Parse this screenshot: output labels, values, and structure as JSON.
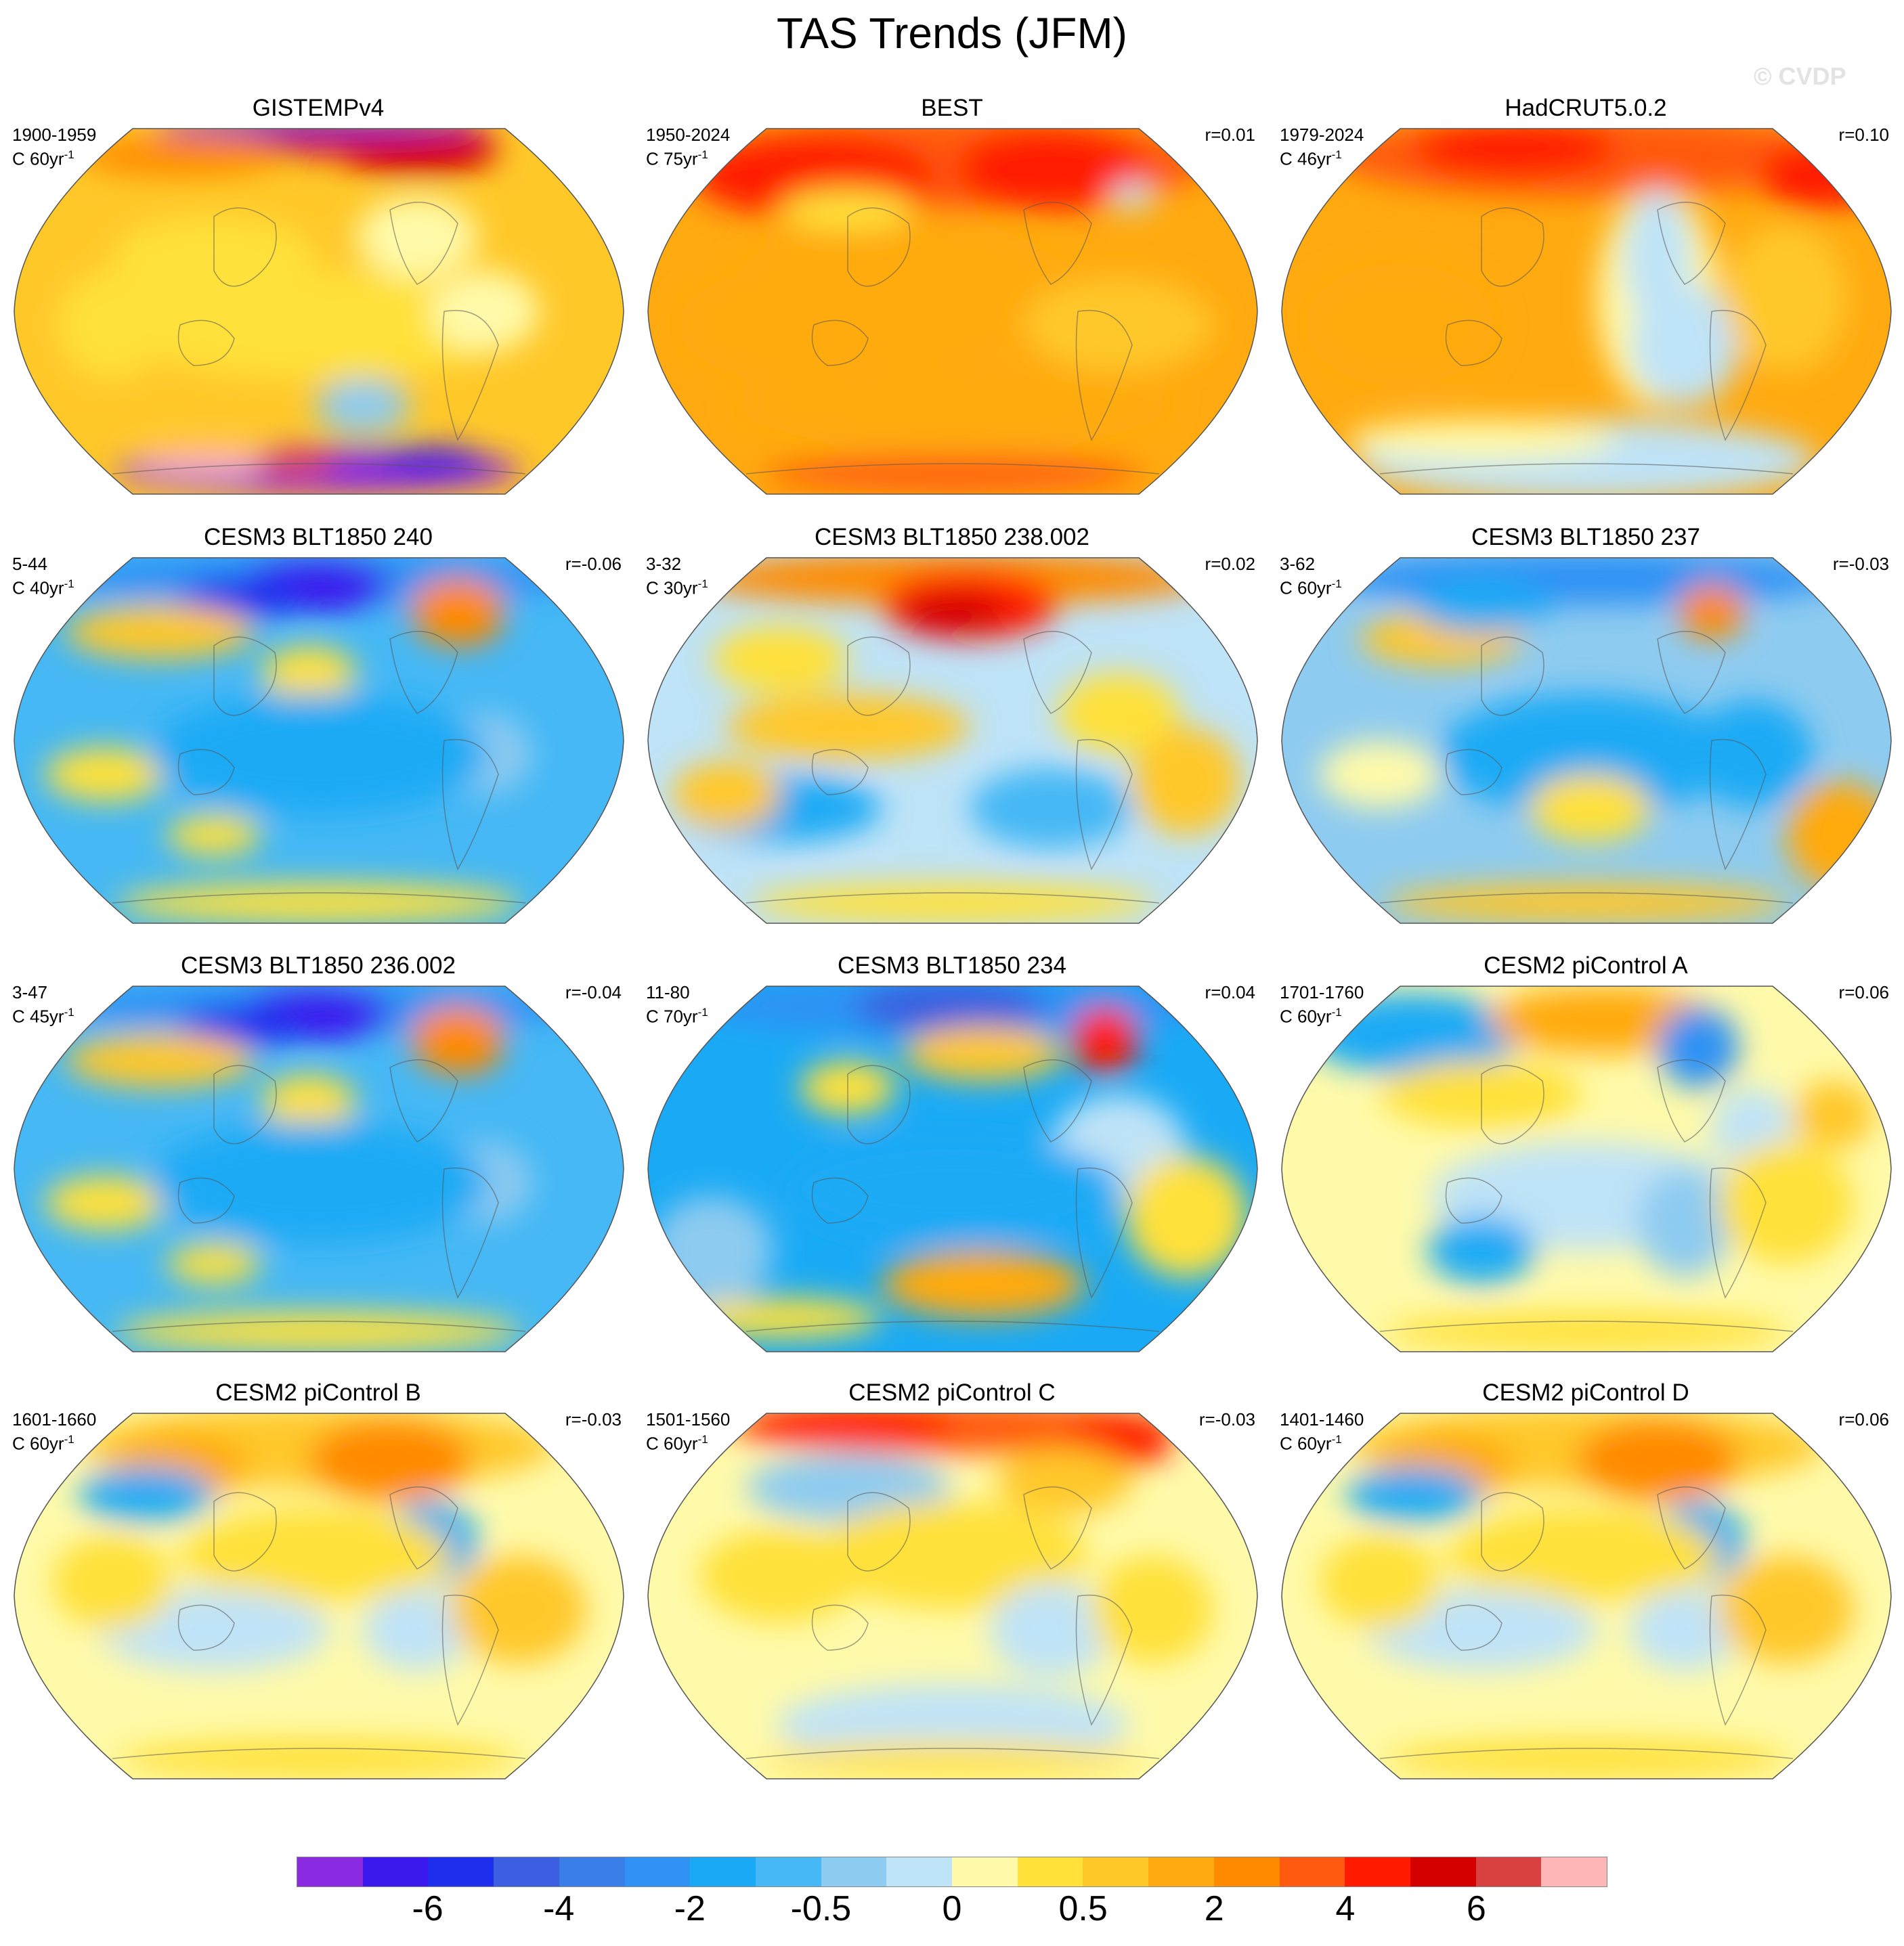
{
  "figure": {
    "title": "TAS Trends (JFM)",
    "watermark": "© CVDP"
  },
  "palette": {
    "ocean_outline": "#555555",
    "colors": [
      "#8a2be2",
      "#3b18ee",
      "#1f2fee",
      "#3b5fe0",
      "#3a7fe8",
      "#2f92f4",
      "#1aaaf5",
      "#45b8f5",
      "#8ecbf0",
      "#bfe3f7",
      "#fffaaa",
      "#ffe13a",
      "#ffc829",
      "#ffaa10",
      "#ff8a00",
      "#ff5a10",
      "#ff1a00",
      "#d40000",
      "#d94040",
      "#ffb6b6"
    ],
    "labels": [
      "-6",
      "-4",
      "-2",
      "-0.5",
      "0",
      "0.5",
      "2",
      "4",
      "6"
    ]
  },
  "panels": [
    {
      "title": "GISTEMPv4",
      "period": "1900-1959",
      "units": "C 60yr",
      "units_exp": "-1",
      "r": "",
      "style": "gistemp"
    },
    {
      "title": "BEST",
      "period": "1950-2024",
      "units": "C 75yr",
      "units_exp": "-1",
      "r": "r=0.01",
      "style": "best"
    },
    {
      "title": "HadCRUT5.0.2",
      "period": "1979-2024",
      "units": "C 46yr",
      "units_exp": "-1",
      "r": "r=0.10",
      "style": "hadcrut"
    },
    {
      "title": "CESM3 BLT1850 240",
      "period": "5-44",
      "units": "C 40yr",
      "units_exp": "-1",
      "r": "r=-0.06",
      "style": "cool"
    },
    {
      "title": "CESM3 BLT1850 238.002",
      "period": "3-32",
      "units": "C 30yr",
      "units_exp": "-1",
      "r": "r=0.02",
      "style": "mixed"
    },
    {
      "title": "CESM3 BLT1850 237",
      "period": "3-62",
      "units": "C 60yr",
      "units_exp": "-1",
      "r": "r=-0.03",
      "style": "coolmix"
    },
    {
      "title": "CESM3 BLT1850 236.002",
      "period": "3-47",
      "units": "C 45yr",
      "units_exp": "-1",
      "r": "r=-0.04",
      "style": "cool"
    },
    {
      "title": "CESM3 BLT1850 234",
      "period": "11-80",
      "units": "C 70yr",
      "units_exp": "-1",
      "r": "r=0.04",
      "style": "cool2"
    },
    {
      "title": "CESM2 piControl A",
      "period": "1701-1760",
      "units": "C 60yr",
      "units_exp": "-1",
      "r": "r=0.06",
      "style": "pale"
    },
    {
      "title": "CESM2 piControl B",
      "period": "1601-1660",
      "units": "C 60yr",
      "units_exp": "-1",
      "r": "r=-0.03",
      "style": "warmpale"
    },
    {
      "title": "CESM2 piControl C",
      "period": "1501-1560",
      "units": "C 60yr",
      "units_exp": "-1",
      "r": "r=-0.03",
      "style": "warmtop"
    },
    {
      "title": "CESM2 piControl D",
      "period": "1401-1460",
      "units": "C 60yr",
      "units_exp": "-1",
      "r": "r=0.06",
      "style": "warmpale"
    }
  ]
}
